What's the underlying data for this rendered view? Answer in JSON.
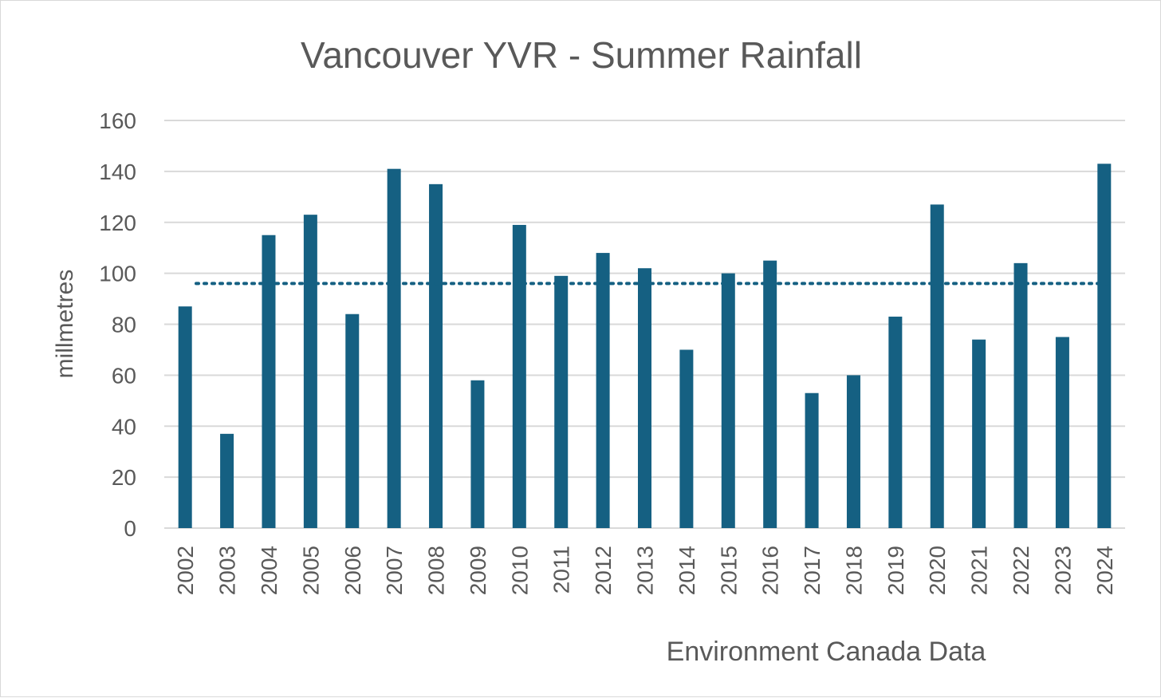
{
  "chart_data": {
    "type": "bar",
    "title": "Vancouver YVR - Summer Rainfall",
    "ylabel": "millmetres",
    "xlabel": "",
    "annotation": "Environment Canada Data",
    "categories": [
      "2002",
      "2003",
      "2004",
      "2005",
      "2006",
      "2007",
      "2008",
      "2009",
      "2010",
      "2011",
      "2012",
      "2013",
      "2014",
      "2015",
      "2016",
      "2017",
      "2018",
      "2019",
      "2020",
      "2021",
      "2022",
      "2023",
      "2024"
    ],
    "values": [
      87,
      37,
      115,
      123,
      84,
      141,
      135,
      58,
      119,
      99,
      108,
      102,
      70,
      100,
      105,
      53,
      60,
      83,
      127,
      74,
      104,
      75,
      143
    ],
    "average_line": 96,
    "ylim": [
      0,
      160
    ],
    "yticks": [
      0,
      20,
      40,
      60,
      80,
      100,
      120,
      140,
      160
    ],
    "grid": true,
    "colors": {
      "bar": "#156082",
      "average_line": "#156082",
      "grid": "#d9d9d9",
      "text": "#595959"
    }
  }
}
